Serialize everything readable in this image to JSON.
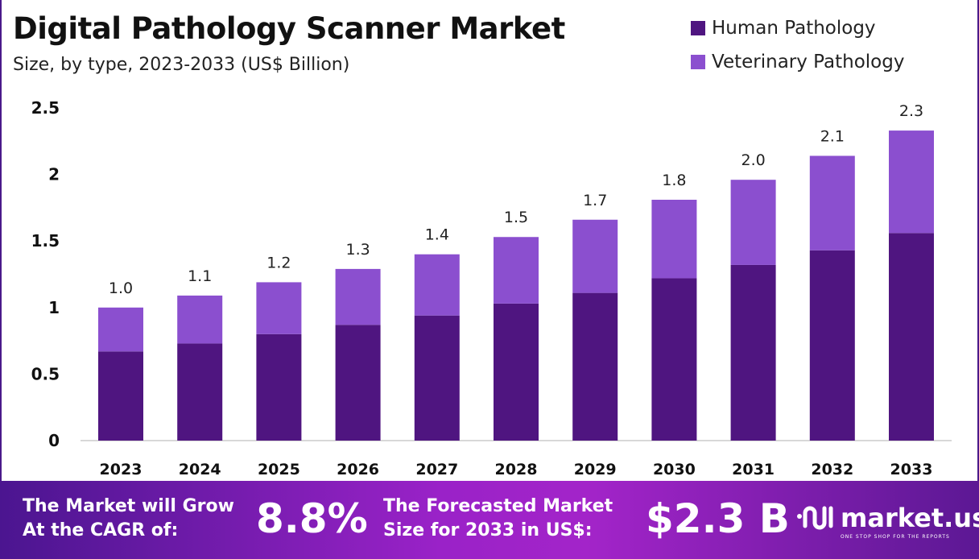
{
  "chart_data": {
    "type": "bar",
    "stacked": true,
    "title": "Digital Pathology Scanner Market",
    "subtitle": "Size, by type, 2023-2033 (US$ Billion)",
    "xlabel": "",
    "ylabel": "",
    "ylim": [
      0,
      2.5
    ],
    "yticks": [
      "0",
      "0.5",
      "1",
      "1.5",
      "2",
      "2.5"
    ],
    "ytick_values": [
      0,
      0.5,
      1,
      1.5,
      2,
      2.5
    ],
    "categories": [
      "2023",
      "2024",
      "2025",
      "2026",
      "2027",
      "2028",
      "2029",
      "2030",
      "2031",
      "2032",
      "2033"
    ],
    "series": [
      {
        "name": "Human Pathology",
        "color": "#4f1580",
        "values": [
          0.67,
          0.73,
          0.8,
          0.87,
          0.94,
          1.03,
          1.11,
          1.22,
          1.32,
          1.43,
          1.56
        ]
      },
      {
        "name": "Veterinary Pathology",
        "color": "#8b4fcf",
        "values": [
          0.33,
          0.36,
          0.39,
          0.42,
          0.46,
          0.5,
          0.55,
          0.59,
          0.64,
          0.71,
          0.77
        ]
      }
    ],
    "totals": [
      1.0,
      1.09,
      1.19,
      1.29,
      1.4,
      1.53,
      1.66,
      1.81,
      1.96,
      2.14,
      2.33
    ],
    "total_labels": [
      "1.0",
      "1.1",
      "1.2",
      "1.3",
      "1.4",
      "1.5",
      "1.7",
      "1.8",
      "2.0",
      "2.1",
      "2.3"
    ],
    "legend_position": "top-right",
    "grid": false
  },
  "footer": {
    "cagr_text_1": "The Market will Grow",
    "cagr_text_2": "At the CAGR of:",
    "cagr_value": "8.8%",
    "forecast_text_1": "The Forecasted Market",
    "forecast_text_2": "Size for 2033 in US$:",
    "forecast_value": "$2.3 B",
    "logo_name": "market.us",
    "logo_tagline": "ONE STOP SHOP FOR THE REPORTS"
  }
}
